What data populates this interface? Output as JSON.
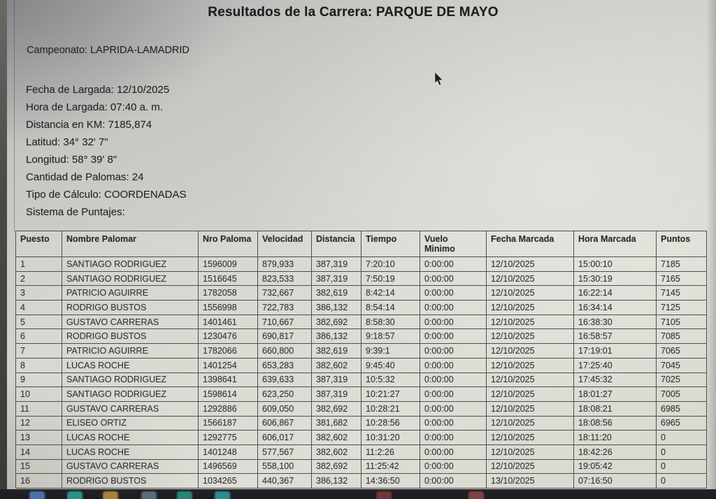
{
  "header": {
    "title": "Resultados de la Carrera: PARQUE DE MAYO",
    "championship": "Campeonato: LAPRIDA-LAMADRID"
  },
  "info": {
    "lines": [
      "Fecha de Largada: 12/10/2025",
      "Hora de Largada: 07:40 a. m.",
      "Distancia en KM: 7185,874",
      "Latitud: 34° 32' 7\"",
      "Longitud: 58° 39' 8\"",
      "Cantidad de Palomas: 24",
      "Tipo de Cálculo: COORDENADAS",
      "Sistema de Puntajes:"
    ]
  },
  "table": {
    "headers": [
      "Puesto",
      "Nombre Palomar",
      "Nro Paloma",
      "Velocidad",
      "Distancia",
      "Tiempo",
      "Vuelo Minimo",
      "Fecha Marcada",
      "Hora Marcada",
      "Puntos"
    ],
    "rows": [
      [
        "1",
        "SANTIAGO RODRIGUEZ",
        "1596009",
        "879,933",
        "387,319",
        "7:20:10",
        "0:00:00",
        "12/10/2025",
        "15:00:10",
        "7185"
      ],
      [
        "2",
        "SANTIAGO RODRIGUEZ",
        "1516645",
        "823,533",
        "387,319",
        "7:50:19",
        "0:00:00",
        "12/10/2025",
        "15:30:19",
        "7165"
      ],
      [
        "3",
        "PATRICIO AGUIRRE",
        "1782058",
        "732,667",
        "382,619",
        "8:42:14",
        "0:00:00",
        "12/10/2025",
        "16:22:14",
        "7145"
      ],
      [
        "4",
        "RODRIGO BUSTOS",
        "1556998",
        "722,783",
        "386,132",
        "8:54:14",
        "0:00:00",
        "12/10/2025",
        "16:34:14",
        "7125"
      ],
      [
        "5",
        "GUSTAVO CARRERAS",
        "1401461",
        "710,667",
        "382,692",
        "8:58:30",
        "0:00:00",
        "12/10/2025",
        "16:38:30",
        "7105"
      ],
      [
        "6",
        "RODRIGO BUSTOS",
        "1230476",
        "690,817",
        "386,132",
        "9:18:57",
        "0:00:00",
        "12/10/2025",
        "16:58:57",
        "7085"
      ],
      [
        "7",
        "PATRICIO AGUIRRE",
        "1782066",
        "660,800",
        "382,619",
        "9:39:1",
        "0:00:00",
        "12/10/2025",
        "17:19:01",
        "7065"
      ],
      [
        "8",
        "LUCAS ROCHE",
        "1401254",
        "653,283",
        "382,602",
        "9:45:40",
        "0:00:00",
        "12/10/2025",
        "17:25:40",
        "7045"
      ],
      [
        "9",
        "SANTIAGO RODRIGUEZ",
        "1398641",
        "639,633",
        "387,319",
        "10:5:32",
        "0:00:00",
        "12/10/2025",
        "17:45:32",
        "7025"
      ],
      [
        "10",
        "SANTIAGO RODRIGUEZ",
        "1598614",
        "623,250",
        "387,319",
        "10:21:27",
        "0:00:00",
        "12/10/2025",
        "18:01:27",
        "7005"
      ],
      [
        "11",
        "GUSTAVO CARRERAS",
        "1292886",
        "609,050",
        "382,692",
        "10:28:21",
        "0:00:00",
        "12/10/2025",
        "18:08:21",
        "6985"
      ],
      [
        "12",
        "ELISEO ORTIZ",
        "1566187",
        "606,867",
        "381,682",
        "10:28:56",
        "0:00:00",
        "12/10/2025",
        "18:08:56",
        "6965"
      ],
      [
        "13",
        "LUCAS ROCHE",
        "1292775",
        "606,017",
        "382,602",
        "10:31:20",
        "0:00:00",
        "12/10/2025",
        "18:11:20",
        "0"
      ],
      [
        "14",
        "LUCAS ROCHE",
        "1401248",
        "577,567",
        "382,602",
        "11:2:26",
        "0:00:00",
        "12/10/2025",
        "18:42:26",
        "0"
      ],
      [
        "15",
        "GUSTAVO CARRERAS",
        "1496569",
        "558,100",
        "382,692",
        "11:25:42",
        "0:00:00",
        "12/10/2025",
        "19:05:42",
        "0"
      ],
      [
        "16",
        "RODRIGO BUSTOS",
        "1034265",
        "440,367",
        "386,132",
        "14:36:50",
        "0:00:00",
        "13/10/2025",
        "07:16:50",
        "0"
      ]
    ]
  },
  "taskbar": {
    "icons": [
      {
        "name": "taskbar-app-icon-1",
        "color": "#5b8fd4"
      },
      {
        "name": "taskbar-app-icon-2",
        "color": "#2fb9a8"
      },
      {
        "name": "taskbar-app-icon-3",
        "color": "#d9a43e"
      },
      {
        "name": "taskbar-app-icon-4",
        "color": "#6c8796"
      },
      {
        "name": "taskbar-app-icon-5",
        "color": "#2aa78f"
      },
      {
        "name": "taskbar-app-icon-6",
        "color": "#31b2b0"
      },
      {
        "name": "taskbar-app-icon-7",
        "color": "#8a4040"
      },
      {
        "name": "taskbar-app-icon-8",
        "color": "#a05050"
      }
    ]
  }
}
